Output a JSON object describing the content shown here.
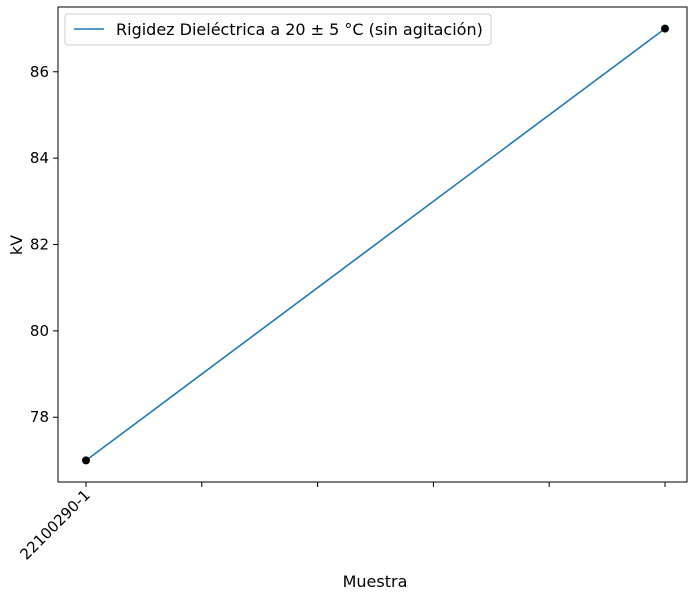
{
  "chart_data": {
    "type": "line",
    "xlabel": "Muestra",
    "ylabel": "kV",
    "x_tick_labels": [
      "22100290-1"
    ],
    "ylim": [
      76.5,
      87.5
    ],
    "y_ticks": [
      78,
      80,
      82,
      84,
      86
    ],
    "y_tick_labels": [
      "78",
      "80",
      "82",
      "84",
      "86"
    ],
    "x_minor_tick_count": 6,
    "legend": "upper-left",
    "grid": false,
    "series": [
      {
        "name": "Rigidez Dieléctrica a 20 ± 5 °C (sin agitación)",
        "color": "#1f77b4",
        "marker_color": "#000000",
        "points": [
          {
            "x": 0,
            "y": 77
          },
          {
            "x": 1,
            "y": 87
          }
        ]
      }
    ]
  }
}
